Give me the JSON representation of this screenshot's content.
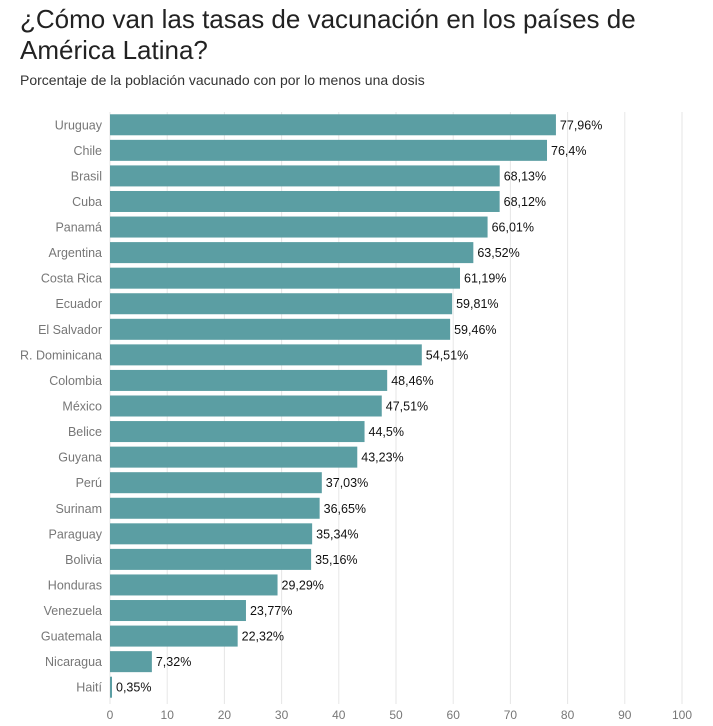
{
  "chart_data": {
    "type": "bar",
    "orientation": "horizontal",
    "title": "¿Cómo van las tasas de vacunación en los países de América Latina?",
    "subtitle": "Porcentaje de la población vacunado con por lo menos una dosis",
    "categories": [
      "Uruguay",
      "Chile",
      "Brasil",
      "Cuba",
      "Panamá",
      "Argentina",
      "Costa Rica",
      "Ecuador",
      "El Salvador",
      "R. Dominicana",
      "Colombia",
      "México",
      "Belice",
      "Guyana",
      "Perú",
      "Surinam",
      "Paraguay",
      "Bolivia",
      "Honduras",
      "Venezuela",
      "Guatemala",
      "Nicaragua",
      "Haití"
    ],
    "values": [
      77.96,
      76.4,
      68.13,
      68.12,
      66.01,
      63.52,
      61.19,
      59.81,
      59.46,
      54.51,
      48.46,
      47.51,
      44.5,
      43.23,
      37.03,
      36.65,
      35.34,
      35.16,
      29.29,
      23.77,
      22.32,
      7.32,
      0.35
    ],
    "value_labels": [
      "77,96%",
      "76,4%",
      "68,13%",
      "68,12%",
      "66,01%",
      "63,52%",
      "61,19%",
      "59,81%",
      "59,46%",
      "54,51%",
      "48,46%",
      "47,51%",
      "44,5%",
      "43,23%",
      "37,03%",
      "36,65%",
      "35,34%",
      "35,16%",
      "29,29%",
      "23,77%",
      "22,32%",
      "7,32%",
      "0,35%"
    ],
    "xlim": [
      0,
      100
    ],
    "xticks": [
      0,
      10,
      20,
      30,
      40,
      50,
      60,
      70,
      80,
      90,
      100
    ],
    "xtick_labels": [
      "0",
      "10",
      "20",
      "30",
      "40",
      "50",
      "60",
      "70",
      "80",
      "90",
      "100"
    ],
    "grid": "vertical",
    "legend": "none",
    "bar_color": "#5b9ea3",
    "grid_color": "#e6e6e6"
  }
}
